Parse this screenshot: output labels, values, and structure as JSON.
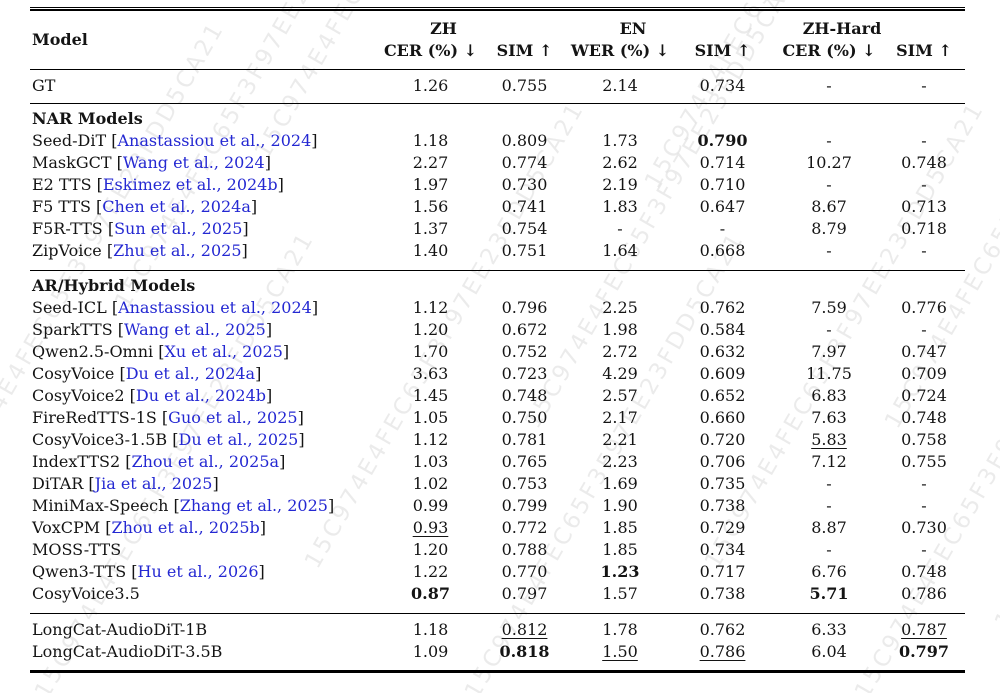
{
  "colors": {
    "text": "#141414",
    "citation": "#2428d2",
    "rule": "#000000",
    "watermark": "#dcdcdc",
    "background": "#ffffff"
  },
  "watermark": {
    "text": "15C974E4FEC65F3F97EE23FDD5CA21"
  },
  "table": {
    "model_header": "Model",
    "groups": [
      {
        "label": "ZH",
        "metrics": [
          "CER (%) ↓",
          "SIM ↑"
        ]
      },
      {
        "label": "EN",
        "metrics": [
          "WER (%) ↓",
          "SIM ↑"
        ]
      },
      {
        "label": "ZH-Hard",
        "metrics": [
          "CER (%) ↓",
          "SIM ↑"
        ]
      }
    ],
    "sections": [
      {
        "title": "",
        "rows": [
          {
            "model": "GT",
            "cite": "",
            "values": [
              "1.26",
              "0.755",
              "2.14",
              "0.734",
              "-",
              "-"
            ],
            "styles": [
              "",
              "",
              "",
              "",
              "",
              ""
            ]
          }
        ]
      },
      {
        "title": "NAR Models",
        "rows": [
          {
            "model": "Seed-DiT",
            "cite": "Anastassiou et al., 2024",
            "values": [
              "1.18",
              "0.809",
              "1.73",
              "0.790",
              "-",
              "-"
            ],
            "styles": [
              "",
              "",
              "",
              "b",
              "",
              ""
            ]
          },
          {
            "model": "MaskGCT",
            "cite": "Wang et al., 2024",
            "values": [
              "2.27",
              "0.774",
              "2.62",
              "0.714",
              "10.27",
              "0.748"
            ],
            "styles": [
              "",
              "",
              "",
              "",
              "",
              ""
            ]
          },
          {
            "model": "E2 TTS",
            "cite": "Eskimez et al., 2024b",
            "values": [
              "1.97",
              "0.730",
              "2.19",
              "0.710",
              "-",
              "-"
            ],
            "styles": [
              "",
              "",
              "",
              "",
              "",
              ""
            ]
          },
          {
            "model": "F5 TTS",
            "cite": "Chen et al., 2024a",
            "values": [
              "1.56",
              "0.741",
              "1.83",
              "0.647",
              "8.67",
              "0.713"
            ],
            "styles": [
              "",
              "",
              "",
              "",
              "",
              ""
            ]
          },
          {
            "model": "F5R-TTS",
            "cite": "Sun et al., 2025",
            "values": [
              "1.37",
              "0.754",
              "-",
              "-",
              "8.79",
              "0.718"
            ],
            "styles": [
              "",
              "",
              "",
              "",
              "",
              ""
            ]
          },
          {
            "model": "ZipVoice",
            "cite": "Zhu et al., 2025",
            "values": [
              "1.40",
              "0.751",
              "1.64",
              "0.668",
              "-",
              "-"
            ],
            "styles": [
              "",
              "",
              "",
              "",
              "",
              ""
            ]
          }
        ]
      },
      {
        "title": "AR/Hybrid Models",
        "rows": [
          {
            "model": "Seed-ICL",
            "cite": "Anastassiou et al., 2024",
            "values": [
              "1.12",
              "0.796",
              "2.25",
              "0.762",
              "7.59",
              "0.776"
            ],
            "styles": [
              "",
              "",
              "",
              "",
              "",
              ""
            ]
          },
          {
            "model": "SparkTTS",
            "cite": "Wang et al., 2025",
            "values": [
              "1.20",
              "0.672",
              "1.98",
              "0.584",
              "-",
              "-"
            ],
            "styles": [
              "",
              "",
              "",
              "",
              "",
              ""
            ]
          },
          {
            "model": "Qwen2.5-Omni",
            "cite": "Xu et al., 2025",
            "values": [
              "1.70",
              "0.752",
              "2.72",
              "0.632",
              "7.97",
              "0.747"
            ],
            "styles": [
              "",
              "",
              "",
              "",
              "",
              ""
            ]
          },
          {
            "model": "CosyVoice",
            "cite": "Du et al., 2024a",
            "values": [
              "3.63",
              "0.723",
              "4.29",
              "0.609",
              "11.75",
              "0.709"
            ],
            "styles": [
              "",
              "",
              "",
              "",
              "",
              ""
            ]
          },
          {
            "model": "CosyVoice2",
            "cite": "Du et al., 2024b",
            "values": [
              "1.45",
              "0.748",
              "2.57",
              "0.652",
              "6.83",
              "0.724"
            ],
            "styles": [
              "",
              "",
              "",
              "",
              "",
              ""
            ]
          },
          {
            "model": "FireRedTTS-1S",
            "cite": "Guo et al., 2025",
            "values": [
              "1.05",
              "0.750",
              "2.17",
              "0.660",
              "7.63",
              "0.748"
            ],
            "styles": [
              "",
              "",
              "",
              "",
              "",
              ""
            ]
          },
          {
            "model": "CosyVoice3-1.5B",
            "cite": "Du et al., 2025",
            "values": [
              "1.12",
              "0.781",
              "2.21",
              "0.720",
              "5.83",
              "0.758"
            ],
            "styles": [
              "",
              "",
              "",
              "",
              "u",
              ""
            ]
          },
          {
            "model": "IndexTTS2",
            "cite": "Zhou et al., 2025a",
            "values": [
              "1.03",
              "0.765",
              "2.23",
              "0.706",
              "7.12",
              "0.755"
            ],
            "styles": [
              "",
              "",
              "",
              "",
              "",
              ""
            ]
          },
          {
            "model": "DiTAR",
            "cite": "Jia et al., 2025",
            "values": [
              "1.02",
              "0.753",
              "1.69",
              "0.735",
              "-",
              "-"
            ],
            "styles": [
              "",
              "",
              "",
              "",
              "",
              ""
            ]
          },
          {
            "model": "MiniMax-Speech",
            "cite": "Zhang et al., 2025",
            "values": [
              "0.99",
              "0.799",
              "1.90",
              "0.738",
              "-",
              "-"
            ],
            "styles": [
              "",
              "",
              "",
              "",
              "",
              ""
            ]
          },
          {
            "model": "VoxCPM",
            "cite": "Zhou et al., 2025b",
            "values": [
              "0.93",
              "0.772",
              "1.85",
              "0.729",
              "8.87",
              "0.730"
            ],
            "styles": [
              "u",
              "",
              "",
              "",
              "",
              ""
            ]
          },
          {
            "model": "MOSS-TTS",
            "cite": "",
            "values": [
              "1.20",
              "0.788",
              "1.85",
              "0.734",
              "-",
              "-"
            ],
            "styles": [
              "",
              "",
              "",
              "",
              "",
              ""
            ]
          },
          {
            "model": "Qwen3-TTS",
            "cite": "Hu et al., 2026",
            "values": [
              "1.22",
              "0.770",
              "1.23",
              "0.717",
              "6.76",
              "0.748"
            ],
            "styles": [
              "",
              "",
              "b",
              "",
              "",
              ""
            ]
          },
          {
            "model": "CosyVoice3.5",
            "cite": "",
            "values": [
              "0.87",
              "0.797",
              "1.57",
              "0.738",
              "5.71",
              "0.786"
            ],
            "styles": [
              "b",
              "",
              "",
              "",
              "b",
              ""
            ]
          }
        ]
      },
      {
        "title": "",
        "rows": [
          {
            "model": "LongCat-AudioDiT-1B",
            "cite": "",
            "values": [
              "1.18",
              "0.812",
              "1.78",
              "0.762",
              "6.33",
              "0.787"
            ],
            "styles": [
              "",
              "u",
              "",
              "",
              "",
              "u"
            ]
          },
          {
            "model": "LongCat-AudioDiT-3.5B",
            "cite": "",
            "values": [
              "1.09",
              "0.818",
              "1.50",
              "0.786",
              "6.04",
              "0.797"
            ],
            "styles": [
              "",
              "b",
              "u",
              "u",
              "",
              "b"
            ]
          }
        ]
      }
    ]
  }
}
